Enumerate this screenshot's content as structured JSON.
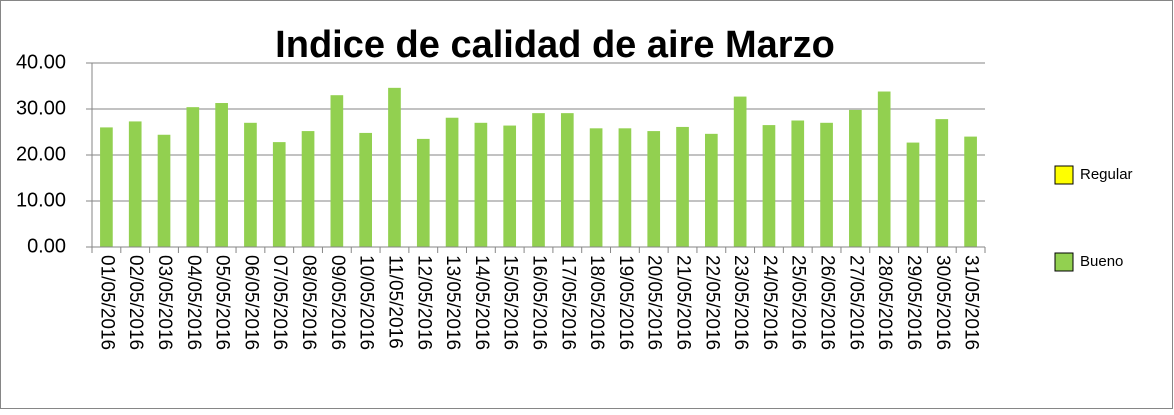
{
  "chart_data": {
    "type": "bar",
    "title": "Indice de calidad de aire Marzo",
    "categories": [
      "01/05/2016",
      "02/05/2016",
      "03/05/2016",
      "04/05/2016",
      "05/05/2016",
      "06/05/2016",
      "07/05/2016",
      "08/05/2016",
      "09/05/2016",
      "10/05/2016",
      "11/05/2016",
      "12/05/2016",
      "13/05/2016",
      "14/05/2016",
      "15/05/2016",
      "16/05/2016",
      "17/05/2016",
      "18/05/2016",
      "19/05/2016",
      "20/05/2016",
      "21/05/2016",
      "22/05/2016",
      "23/05/2016",
      "24/05/2016",
      "25/05/2016",
      "26/05/2016",
      "27/05/2016",
      "28/05/2016",
      "29/05/2016",
      "30/05/2016",
      "31/05/2016"
    ],
    "series": [
      {
        "name": "Regular",
        "color": "#ffff00",
        "values": [
          null,
          null,
          null,
          null,
          null,
          null,
          null,
          null,
          null,
          null,
          null,
          null,
          null,
          null,
          null,
          null,
          null,
          null,
          null,
          null,
          null,
          null,
          null,
          null,
          null,
          null,
          null,
          null,
          null,
          null,
          null
        ]
      },
      {
        "name": "Bueno",
        "color": "#92d050",
        "values": [
          26.0,
          27.3,
          24.4,
          30.4,
          31.3,
          27.0,
          22.8,
          25.2,
          33.0,
          24.8,
          34.6,
          23.5,
          28.1,
          27.0,
          26.4,
          29.1,
          29.1,
          25.8,
          25.8,
          25.2,
          26.1,
          24.6,
          32.7,
          26.5,
          27.5,
          27.0,
          29.8,
          33.8,
          22.7,
          27.8,
          24.0
        ]
      }
    ],
    "ylim": [
      0,
      40
    ],
    "yticks": [
      {
        "value": 0,
        "label": "0.00"
      },
      {
        "value": 10,
        "label": "10.00"
      },
      {
        "value": 20,
        "label": "20.00"
      },
      {
        "value": 30,
        "label": "30.00"
      },
      {
        "value": 40,
        "label": "40.00"
      }
    ],
    "grid": true,
    "legend": "right"
  }
}
